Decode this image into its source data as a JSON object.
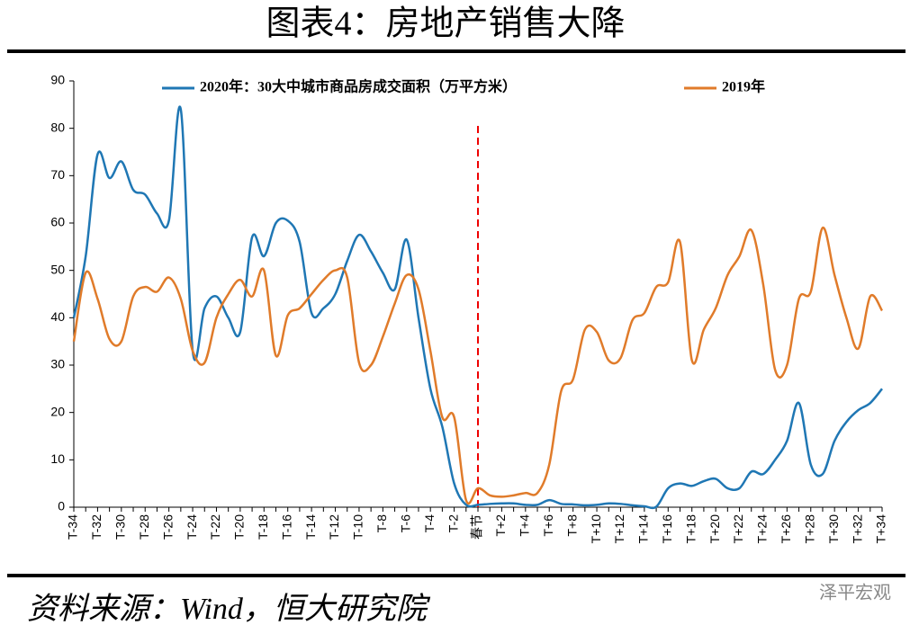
{
  "chart_data": {
    "type": "line",
    "title": "图表4：房地产销售大降",
    "source": "资料来源：Wind，恒大研究院",
    "watermark": "泽平宏观",
    "categories": [
      "T-34",
      null,
      "T-32",
      null,
      "T-30",
      null,
      "T-28",
      null,
      "T-26",
      null,
      "T-24",
      null,
      "T-22",
      null,
      "T-20",
      null,
      "T-18",
      null,
      "T-16",
      null,
      "T-14",
      null,
      "T-12",
      null,
      "T-10",
      null,
      "T-8",
      null,
      "T-6",
      null,
      "T-4",
      null,
      "T-2",
      null,
      "春节",
      null,
      "T+2",
      null,
      "T+4",
      null,
      "T+6",
      null,
      "T+8",
      null,
      "T+10",
      null,
      "T+12",
      null,
      "T+14",
      null,
      "T+16",
      null,
      "T+18",
      null,
      "T+20",
      null,
      "T+22",
      null,
      "T+24",
      null,
      "T+26",
      null,
      "T+28",
      null,
      "T+30",
      null,
      "T+32",
      null,
      "T+34"
    ],
    "series": [
      {
        "name": "2020年：30大中城市商品房成交面积（万平方米）",
        "color": "#1f77b4",
        "values": [
          40,
          53,
          74.5,
          69.5,
          73,
          67,
          66,
          62,
          60.5,
          84,
          33,
          42,
          44.5,
          40,
          37,
          57,
          53,
          60,
          60.5,
          56,
          41,
          42,
          45,
          52,
          57.5,
          54,
          49.5,
          46,
          56.5,
          40,
          25,
          17,
          5,
          0.5,
          0.5,
          0.7,
          0.8,
          0.8,
          0.5,
          0.5,
          1.5,
          0.7,
          0.6,
          0.4,
          0.5,
          0.8,
          0.7,
          0.4,
          0.2,
          0.1,
          4,
          5,
          4.5,
          5.5,
          6,
          4,
          4,
          7.5,
          7,
          10,
          14,
          22,
          9,
          7,
          14,
          18,
          20.5,
          22,
          25
        ]
      },
      {
        "name": "2019年",
        "color": "#e07b2a",
        "values": [
          35,
          49.5,
          44,
          35.5,
          35,
          44.5,
          46.5,
          45.5,
          48.5,
          44,
          33,
          30.5,
          40,
          45,
          48,
          44.5,
          50,
          32,
          40.5,
          42,
          45,
          48,
          50,
          48.5,
          30.5,
          30,
          36,
          43,
          49,
          46,
          33,
          19,
          19,
          1.5,
          4,
          2.5,
          2.2,
          2.5,
          3,
          3,
          9,
          24.5,
          27,
          37.5,
          37,
          31,
          31.5,
          39.5,
          41,
          46.5,
          47.5,
          56,
          31,
          37.5,
          42,
          49,
          53,
          58.5,
          47,
          29,
          30,
          44,
          45.5,
          59,
          49,
          40,
          33.5,
          44.5,
          41.5
        ]
      }
    ],
    "ylim": [
      0,
      90
    ],
    "yticks": [
      0,
      10,
      20,
      30,
      40,
      50,
      60,
      70,
      80,
      90
    ],
    "marker_category": 34
  }
}
